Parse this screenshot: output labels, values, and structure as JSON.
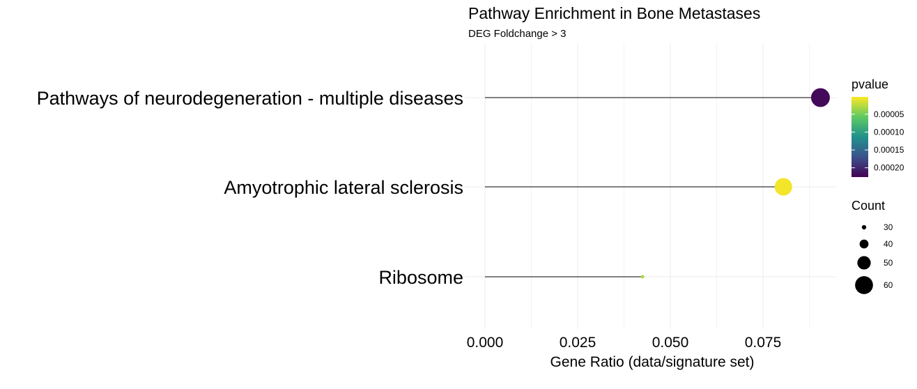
{
  "chart_data": {
    "type": "lollipop",
    "title": "Pathway Enrichment in Bone Metastases",
    "subtitle": "DEG Foldchange > 3",
    "xlabel": "Gene Ratio (data/signature set)",
    "ylabel": "",
    "xlim": [
      0,
      0.095
    ],
    "x_ticks": [
      0.0,
      0.025,
      0.05,
      0.075
    ],
    "x_tick_labels": [
      "0.000",
      "0.025",
      "0.050",
      "0.075"
    ],
    "grid": true,
    "points": [
      {
        "category": "Pathways of neurodegeneration - multiple diseases",
        "gene_ratio": 0.0905,
        "pvalue": 0.00022,
        "count": 62
      },
      {
        "category": "Amyotrophic lateral sclerosis",
        "gene_ratio": 0.0805,
        "pvalue": 5e-06,
        "count": 59
      },
      {
        "category": "Ribosome",
        "gene_ratio": 0.0425,
        "pvalue": 3e-05,
        "count": 28
      }
    ],
    "color_legend": {
      "title": "pvalue",
      "min": 1.5e-06,
      "max": 0.000226,
      "ticks": [
        5e-05,
        0.0001,
        0.00015,
        0.0002
      ],
      "tick_labels": [
        "0.00005",
        "0.00010",
        "0.00015",
        "0.00020"
      ],
      "colors": [
        "#fde725",
        "#5ec962",
        "#21918c",
        "#3b528b",
        "#440154"
      ]
    },
    "size_legend": {
      "title": "Count",
      "values": [
        30,
        40,
        50,
        60
      ],
      "labels": [
        "30",
        "40",
        "50",
        "60"
      ]
    },
    "legend_position": "right"
  }
}
